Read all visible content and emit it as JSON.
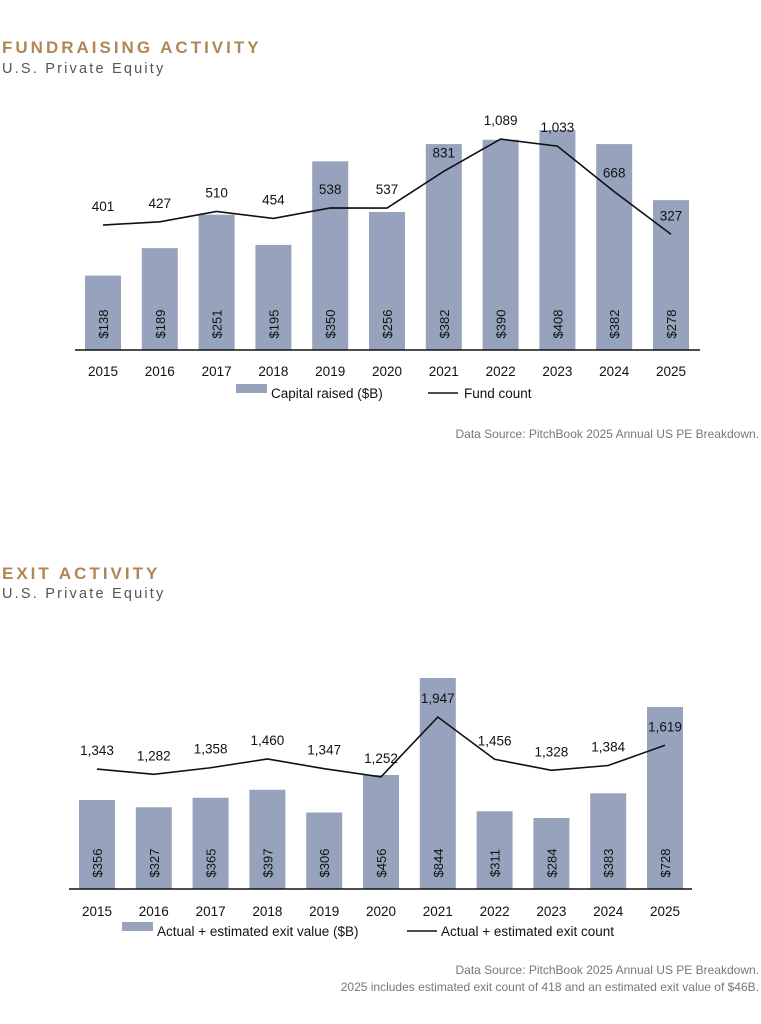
{
  "chart_data": [
    {
      "type": "bar",
      "title": "FUNDRAISING ACTIVITY",
      "subtitle": "U.S. Private Equity",
      "categories": [
        "2015",
        "2016",
        "2017",
        "2018",
        "2019",
        "2020",
        "2021",
        "2022",
        "2023",
        "2024",
        "2025"
      ],
      "series": [
        {
          "name": "Capital raised ($B)",
          "kind": "bar",
          "values": [
            138,
            189,
            251,
            195,
            350,
            256,
            382,
            390,
            408,
            382,
            278
          ],
          "labels": [
            "$138",
            "$189",
            "$251",
            "$195",
            "$350",
            "$256",
            "$382",
            "$390",
            "$408",
            "$382",
            "$278"
          ]
        },
        {
          "name": "Fund count",
          "kind": "line",
          "values": [
            401,
            427,
            510,
            454,
            538,
            537,
            831,
            1089,
            1033,
            668,
            327
          ],
          "labels": [
            "401",
            "427",
            "510",
            "454",
            "538",
            "537",
            "831",
            "1,089",
            "1,033",
            "668",
            "327"
          ]
        }
      ],
      "bar_ylim": [
        0,
        410
      ],
      "line_ylim": [
        -600,
        1170
      ],
      "colors": {
        "bar": "#97a3bd",
        "line": "#111111",
        "axis": "#111111"
      },
      "legend": {
        "bar_label": "Capital raised ($B)",
        "line_label": "Fund count",
        "position": "bottom"
      },
      "source": "Data Source: PitchBook 2025 Annual US PE Breakdown."
    },
    {
      "type": "bar",
      "title": "EXIT ACTIVITY",
      "subtitle": "U.S. Private Equity",
      "categories": [
        "2015",
        "2016",
        "2017",
        "2018",
        "2019",
        "2020",
        "2021",
        "2022",
        "2023",
        "2024",
        "2025"
      ],
      "series": [
        {
          "name": "Actual + estimated exit value ($B)",
          "kind": "bar",
          "values": [
            356,
            327,
            365,
            397,
            306,
            456,
            844,
            311,
            284,
            383,
            728
          ],
          "labels": [
            "$356",
            "$327",
            "$365",
            "$397",
            "$306",
            "$456",
            "$844",
            "$311",
            "$284",
            "$383",
            "$728"
          ]
        },
        {
          "name": "Actual + estimated exit count",
          "kind": "line",
          "values": [
            1343,
            1282,
            1358,
            1460,
            1347,
            1252,
            1947,
            1456,
            1328,
            1384,
            1619
          ],
          "labels": [
            "1,343",
            "1,282",
            "1,358",
            "1,460",
            "1,347",
            "1,252",
            "1,947",
            "1,456",
            "1,328",
            "1,384",
            "1,619"
          ]
        }
      ],
      "bar_ylim": [
        0,
        844
      ],
      "line_ylim": [
        -50,
        2400
      ],
      "colors": {
        "bar": "#97a3bd",
        "line": "#111111",
        "axis": "#111111"
      },
      "legend": {
        "bar_label": "Actual + estimated exit value ($B)",
        "line_label": "Actual + estimated exit count",
        "position": "bottom"
      },
      "source": "Data Source: PitchBook 2025 Annual US PE Breakdown.",
      "note": "2025 includes estimated exit count of 418 and an estimated exit value of $46B."
    }
  ]
}
